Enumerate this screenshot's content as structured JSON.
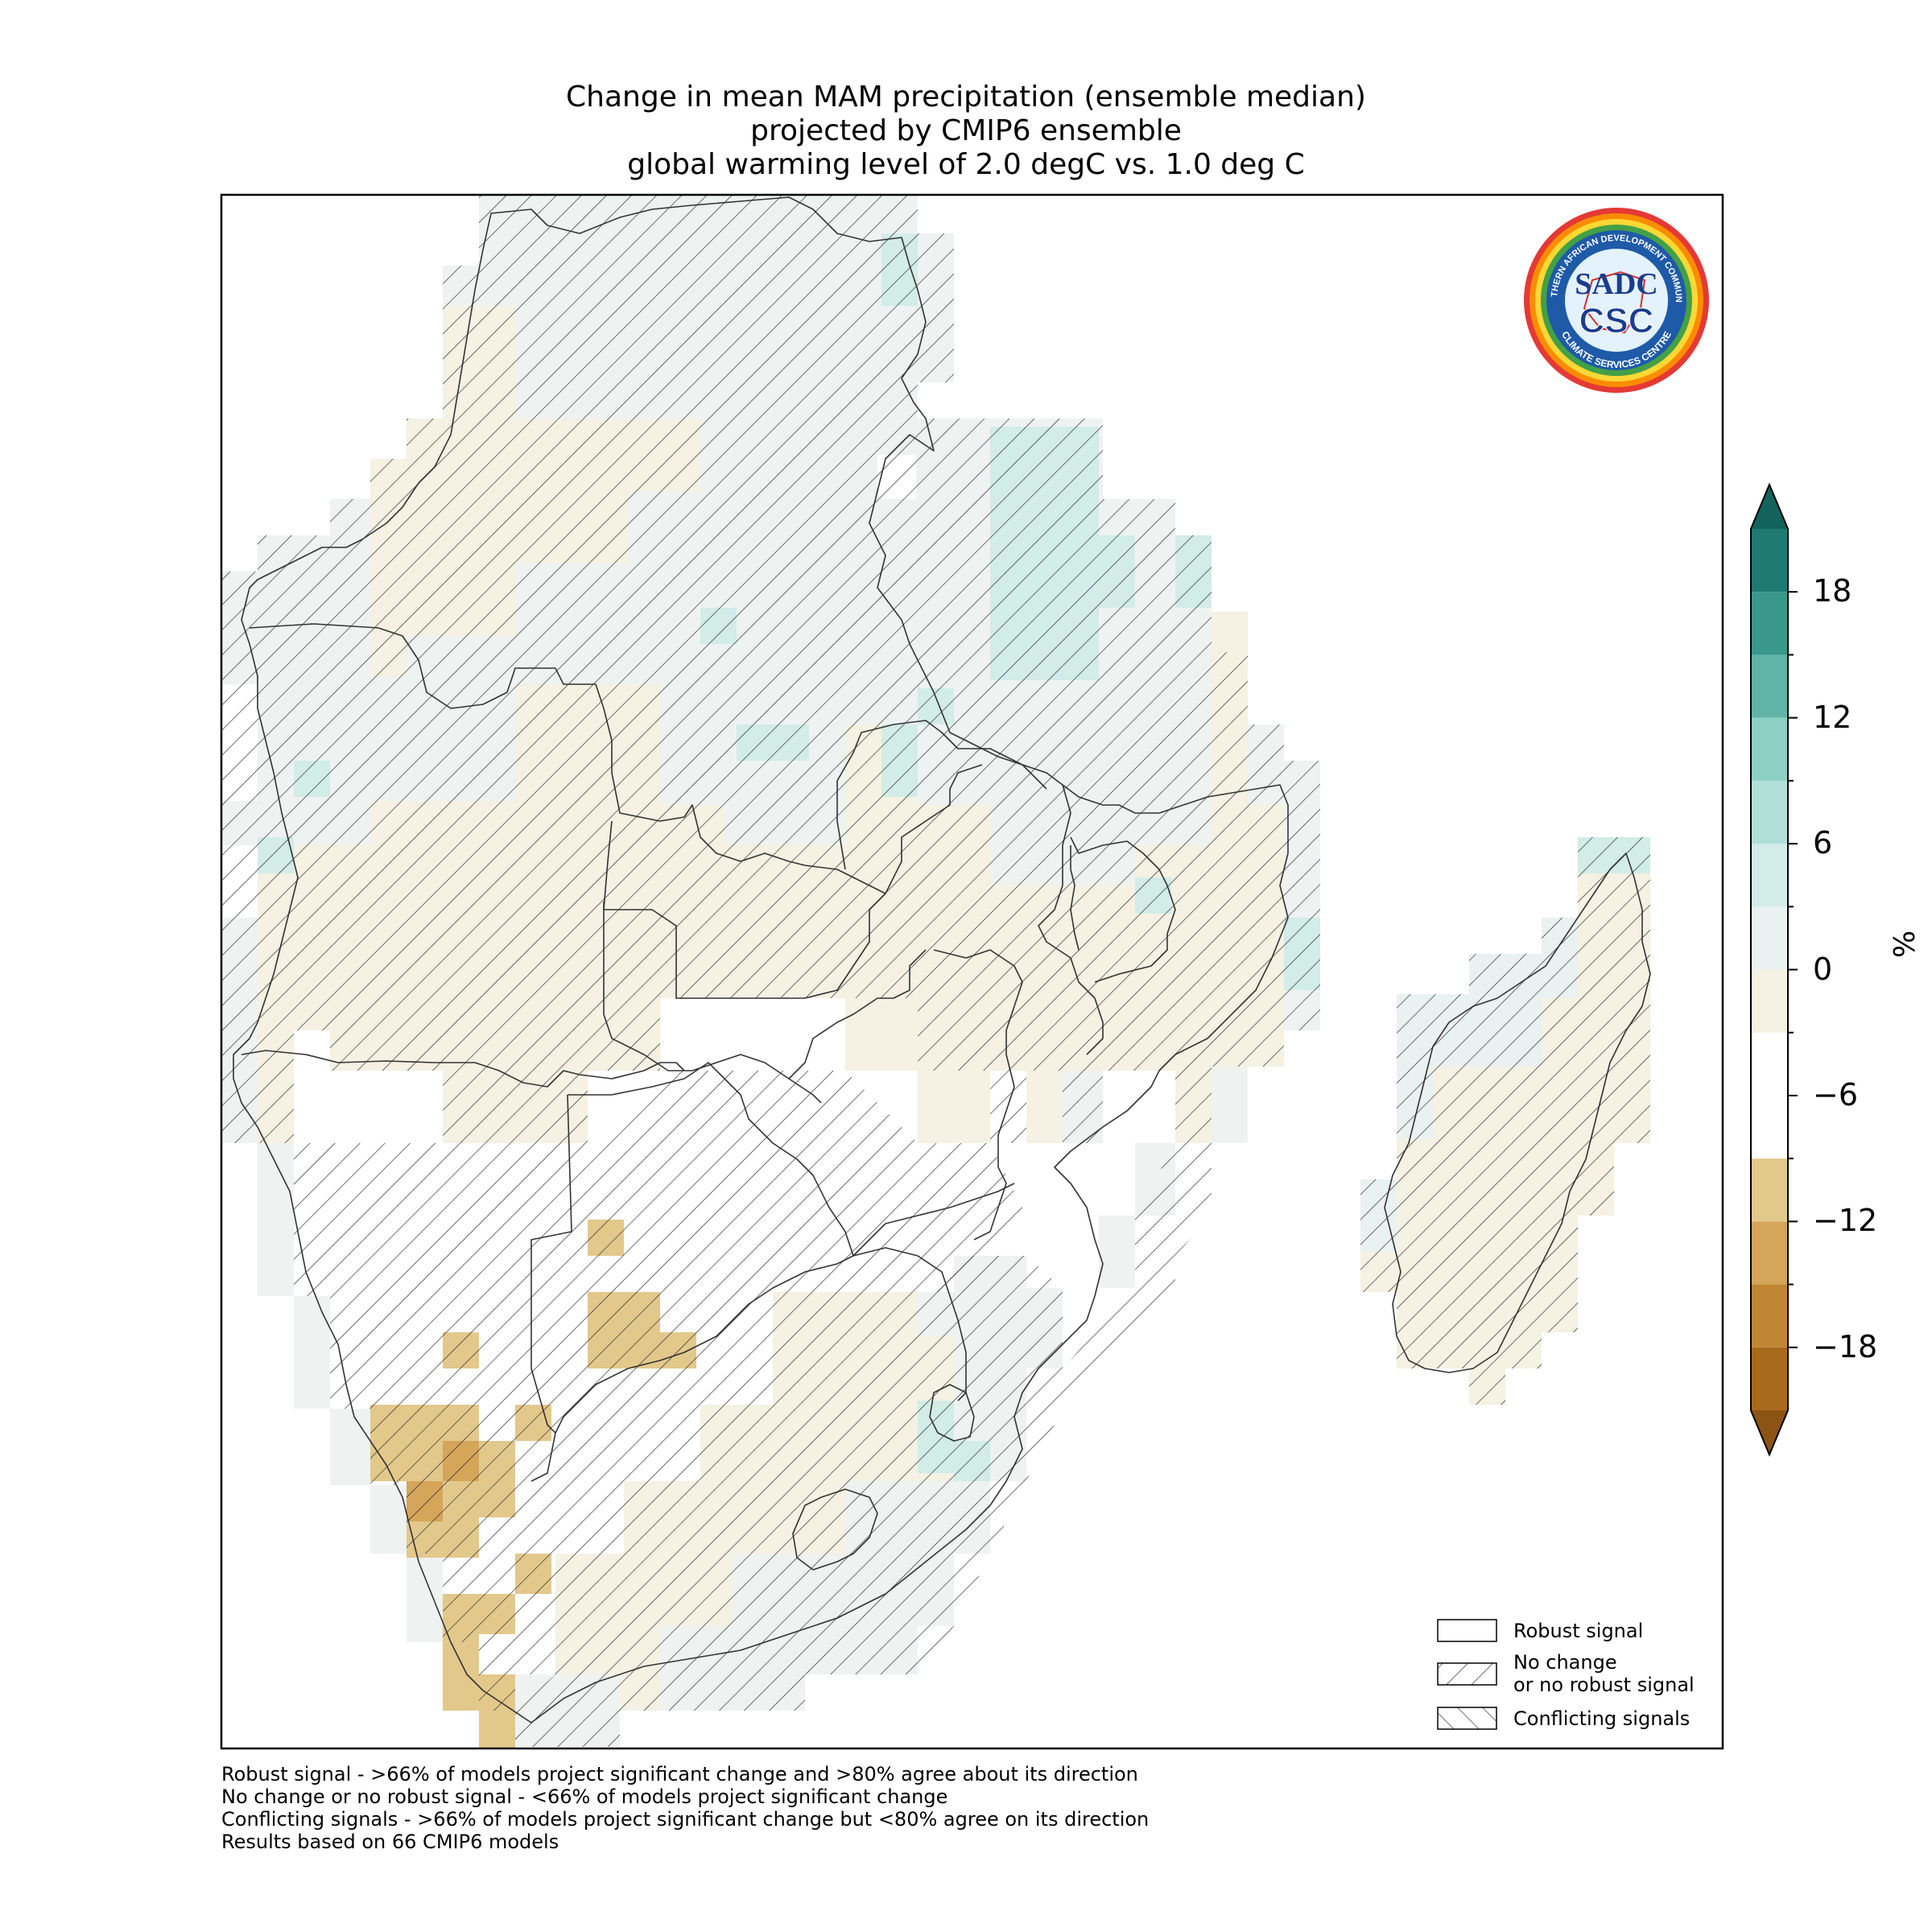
{
  "title": {
    "line1": "Change in mean MAM precipitation (ensemble median)",
    "line2": "projected by CMIP6 ensemble",
    "line3": "global warming level of 2.0 degC vs. 1.0 deg C"
  },
  "logo": {
    "ring_text_top": "SOUTHERN AFRICAN DEVELOPMENT COMMUNITY",
    "ring_text_bottom": "CLIMATE SERVICES CENTRE",
    "initials_top": "SADC",
    "initials_bottom": "CSC"
  },
  "colorbar": {
    "unit": "%",
    "ticks": [
      {
        "value": 18,
        "label": "18"
      },
      {
        "value": 12,
        "label": "12"
      },
      {
        "value": 6,
        "label": "6"
      },
      {
        "value": 0,
        "label": "0"
      },
      {
        "value": -6,
        "label": "−6"
      },
      {
        "value": -12,
        "label": "−12"
      },
      {
        "value": -18,
        "label": "−18"
      }
    ],
    "range": [
      -21,
      21
    ],
    "extend": "both",
    "bins": [
      {
        "from": -21,
        "to": -18,
        "color": "#a86a1d"
      },
      {
        "from": -18,
        "to": -15,
        "color": "#bf8532"
      },
      {
        "from": -15,
        "to": -12,
        "color": "#d5a55a"
      },
      {
        "from": -12,
        "to": -9,
        "color": "#e3c88b"
      },
      {
        "from": -9,
        "to": -3,
        "color": "#ffffff"
      },
      {
        "from": -3,
        "to": 0,
        "color": "#f5f1e3"
      },
      {
        "from": 0,
        "to": 3,
        "color": "#e9f2f1"
      },
      {
        "from": 3,
        "to": 6,
        "color": "#d2ece8"
      },
      {
        "from": 6,
        "to": 9,
        "color": "#b1e0d8"
      },
      {
        "from": 9,
        "to": 12,
        "color": "#8ccfc3"
      },
      {
        "from": 12,
        "to": 15,
        "color": "#5fb4a7"
      },
      {
        "from": 15,
        "to": 18,
        "color": "#3a978c"
      },
      {
        "from": 18,
        "to": 21,
        "color": "#1e7a72"
      }
    ],
    "under_color": "#8c5414",
    "over_color": "#12635c"
  },
  "legend": {
    "items": [
      {
        "label": "Robust signal",
        "hatch": "none"
      },
      {
        "label": "No change\nor no robust signal",
        "hatch": "forward"
      },
      {
        "label": "Conflicting signals",
        "hatch": "backward"
      }
    ]
  },
  "footnotes": [
    "Robust signal - >66% of models project significant change and >80% agree about its direction",
    "No change or no robust signal - <66% of models project significant change",
    "Conflicting signals - >66% of models project significant change but <80% agree on its direction",
    "Results based on 66 CMIP6 models"
  ]
}
